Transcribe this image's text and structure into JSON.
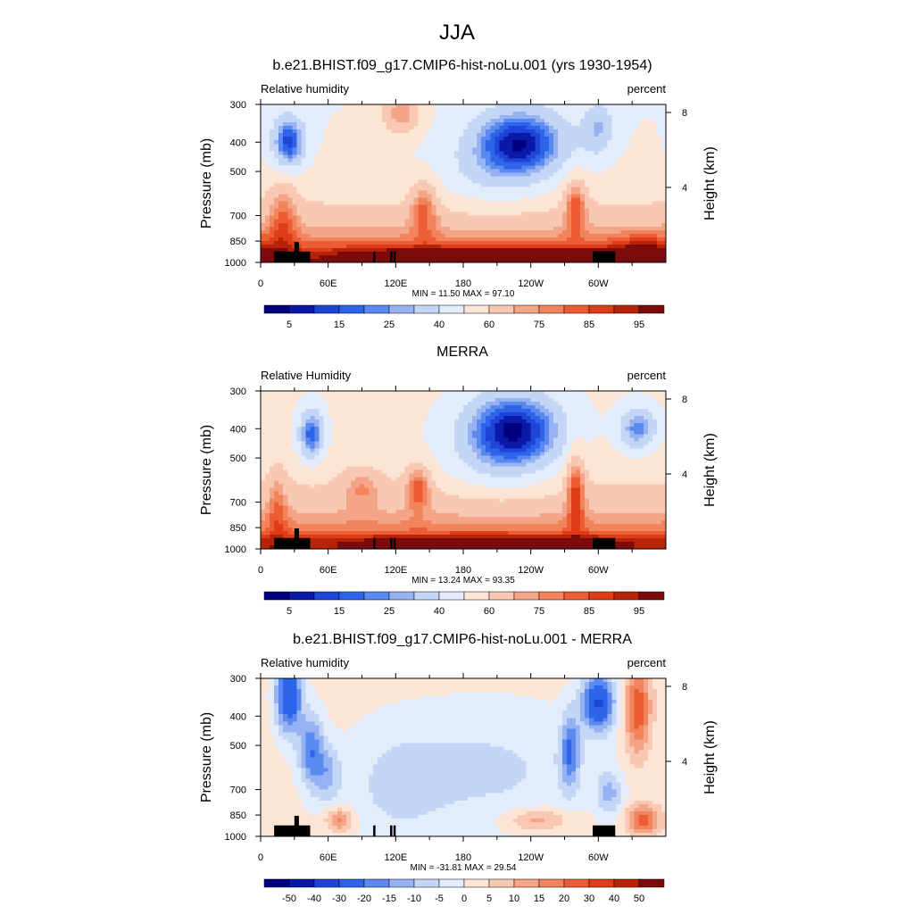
{
  "page": {
    "title": "JJA"
  },
  "palettes": {
    "abs": [
      "#00007f",
      "#0a19a8",
      "#1e44d8",
      "#2e64ea",
      "#5a89ef",
      "#96b2f2",
      "#c4d6f6",
      "#e3ecfb",
      "#fde5d6",
      "#f9c8b2",
      "#f5a587",
      "#f2845c",
      "#ec5d36",
      "#de3d18",
      "#b52309",
      "#7c0c0c"
    ],
    "diff": [
      "#00007f",
      "#0a19a8",
      "#1e44d8",
      "#2e64ea",
      "#5a89ef",
      "#96b2f2",
      "#c4d6f6",
      "#e3ecfb",
      "#fde5d6",
      "#f9c8b2",
      "#f5a587",
      "#f2845c",
      "#ec5d36",
      "#de3d18",
      "#b52309",
      "#7c0c0c"
    ]
  },
  "panels": [
    {
      "title": "b.e21.BHIST.f09_g17.CMIP6-hist-noLu.001 (yrs 1930-1954)",
      "left_label": "Relative humidity",
      "right_label": "percent",
      "y_axis_label": "Pressure (mb)",
      "y2_axis_label": "Height (km)",
      "stats": "MIN =  11.50  MAX =  97.10",
      "colorbar_ticks": [
        "5",
        "15",
        "25",
        "40",
        "60",
        "75",
        "85",
        "95"
      ],
      "palette": "abs",
      "x_ticks": [
        "0",
        "60E",
        "120E",
        "180",
        "120W",
        "60W"
      ],
      "y_ticks": [
        "300",
        "400",
        "500",
        "700",
        "850",
        "1000"
      ],
      "y2_ticks": [
        "8",
        "4"
      ]
    },
    {
      "title": "MERRA",
      "left_label": "Relative Humidity",
      "right_label": "percent",
      "y_axis_label": "Pressure (mb)",
      "y2_axis_label": "Height (km)",
      "stats": "MIN =  13.24  MAX =  93.35",
      "colorbar_ticks": [
        "5",
        "15",
        "25",
        "40",
        "60",
        "75",
        "85",
        "95"
      ],
      "palette": "abs",
      "x_ticks": [
        "0",
        "60E",
        "120E",
        "180",
        "120W",
        "60W"
      ],
      "y_ticks": [
        "300",
        "400",
        "500",
        "700",
        "850",
        "1000"
      ],
      "y2_ticks": [
        "8",
        "4"
      ]
    },
    {
      "title": "b.e21.BHIST.f09_g17.CMIP6-hist-noLu.001 - MERRA",
      "left_label": "Relative humidity",
      "right_label": "percent",
      "y_axis_label": "Pressure (mb)",
      "y2_axis_label": "Height (km)",
      "stats": "MIN = -31.81  MAX =  29.54",
      "colorbar_ticks": [
        "-50",
        "-40",
        "-30",
        "-20",
        "-15",
        "-10",
        "-5",
        "0",
        "5",
        "10",
        "15",
        "20",
        "30",
        "40",
        "50"
      ],
      "palette": "diff",
      "x_ticks": [
        "0",
        "60E",
        "120E",
        "180",
        "120W",
        "60W"
      ],
      "y_ticks": [
        "300",
        "400",
        "500",
        "700",
        "850",
        "1000"
      ],
      "y2_ticks": [
        "8",
        "4"
      ]
    }
  ],
  "chart_data": [
    {
      "type": "heatmap",
      "title": "b.e21.BHIST.f09_g17.CMIP6-hist-noLu.001 (yrs 1930-1954)",
      "xlabel": "",
      "ylabel": "Pressure (mb)",
      "x_range": [
        0,
        360
      ],
      "y_range_mb": [
        1000,
        300
      ],
      "min": 11.5,
      "max": 97.1,
      "levels": [
        5,
        10,
        15,
        20,
        25,
        30,
        40,
        50,
        60,
        70,
        75,
        80,
        85,
        90,
        95
      ],
      "features": [
        {
          "lon": 25,
          "p": 400,
          "value": 20
        },
        {
          "lon": 125,
          "p": 320,
          "value": 75
        },
        {
          "lon": 230,
          "p": 400,
          "value": 10
        },
        {
          "lon": 300,
          "p": 360,
          "value": 28
        },
        {
          "lon": 145,
          "p": 650,
          "value": 80
        },
        {
          "lon": 200,
          "p": 935,
          "value": 95
        }
      ]
    },
    {
      "type": "heatmap",
      "title": "MERRA",
      "xlabel": "",
      "ylabel": "Pressure (mb)",
      "x_range": [
        0,
        360
      ],
      "y_range_mb": [
        1000,
        300
      ],
      "min": 13.24,
      "max": 93.35,
      "levels": [
        5,
        10,
        15,
        20,
        25,
        30,
        40,
        50,
        60,
        70,
        75,
        80,
        85,
        90,
        95
      ],
      "features": [
        {
          "lon": 45,
          "p": 420,
          "value": 20
        },
        {
          "lon": 225,
          "p": 400,
          "value": 10
        },
        {
          "lon": 335,
          "p": 400,
          "value": 22
        },
        {
          "lon": 140,
          "p": 620,
          "value": 80
        },
        {
          "lon": 280,
          "p": 620,
          "value": 85
        },
        {
          "lon": 200,
          "p": 945,
          "value": 90
        }
      ]
    },
    {
      "type": "heatmap",
      "title": "b.e21.BHIST.f09_g17.CMIP6-hist-noLu.001 - MERRA",
      "xlabel": "",
      "ylabel": "Pressure (mb)",
      "x_range": [
        0,
        360
      ],
      "y_range_mb": [
        1000,
        300
      ],
      "min": -31.81,
      "max": 29.54,
      "levels": [
        -50,
        -40,
        -30,
        -20,
        -15,
        -10,
        -5,
        0,
        5,
        10,
        15,
        20,
        30,
        40,
        50
      ],
      "features": [
        {
          "lon": 25,
          "p": 340,
          "value": -30
        },
        {
          "lon": 300,
          "p": 360,
          "value": -30
        },
        {
          "lon": 335,
          "p": 380,
          "value": 20
        },
        {
          "lon": 200,
          "p": 600,
          "value": -8
        },
        {
          "lon": 340,
          "p": 880,
          "value": 20
        },
        {
          "lon": 70,
          "p": 880,
          "value": 15
        }
      ]
    }
  ]
}
